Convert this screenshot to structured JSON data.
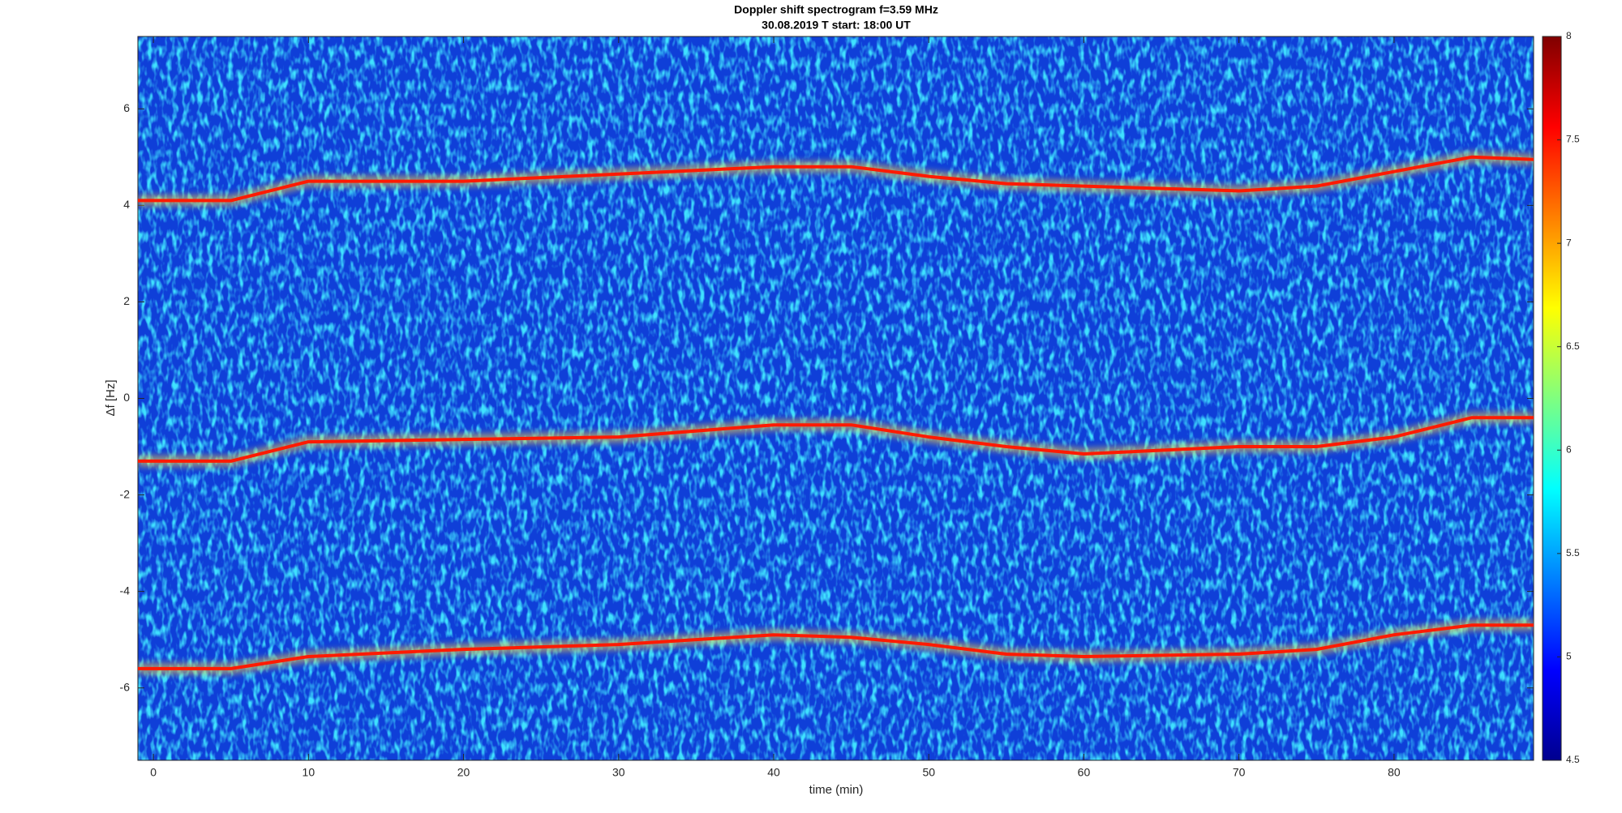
{
  "chart_data": {
    "type": "spectrogram",
    "title": "Doppler shift spectrogram f=3.59 MHz",
    "subtitle": "30.08.2019   T start: 18:00 UT",
    "x_label": "time (min)",
    "y_label": "Δf [Hz]",
    "x": [
      -1,
      5,
      10,
      20,
      30,
      40,
      45,
      50,
      55,
      60,
      70,
      75,
      80,
      85,
      89
    ],
    "series": [
      {
        "color": "#ff1a00",
        "values": [
          4.1,
          4.1,
          4.5,
          4.5,
          4.65,
          4.8,
          4.8,
          4.6,
          4.45,
          4.4,
          4.3,
          4.4,
          4.7,
          5.0,
          4.95
        ]
      },
      {
        "color": "#ff1a00",
        "values": [
          -1.3,
          -1.3,
          -0.9,
          -0.85,
          -0.8,
          -0.55,
          -0.55,
          -0.8,
          -1.0,
          -1.15,
          -1.0,
          -1.0,
          -0.8,
          -0.4,
          -0.4
        ]
      },
      {
        "color": "#ff1a00",
        "values": [
          -5.6,
          -5.6,
          -5.35,
          -5.2,
          -5.1,
          -4.9,
          -4.95,
          -5.1,
          -5.3,
          -5.35,
          -5.3,
          -5.2,
          -4.9,
          -4.7,
          -4.7
        ]
      }
    ],
    "xlim": [
      -1,
      89
    ],
    "xticks": [
      0,
      10,
      20,
      30,
      40,
      50,
      60,
      70,
      80
    ],
    "ylim": [
      -7.5,
      7.5
    ],
    "yticks": [
      -6,
      -4,
      -2,
      0,
      2,
      4,
      6
    ],
    "colormap": "jet",
    "clim": [
      4.5,
      8
    ],
    "cticks": [
      4.5,
      5,
      5.5,
      6,
      6.5,
      7,
      7.5,
      8
    ]
  }
}
